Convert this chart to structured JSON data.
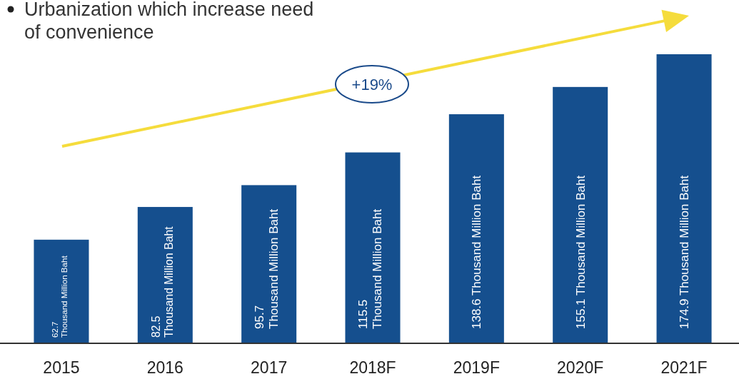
{
  "chart_data": {
    "type": "bar",
    "categories": [
      "2015",
      "2016",
      "2017",
      "2018F",
      "2019F",
      "2020F",
      "2021F"
    ],
    "values": [
      62.7,
      82.5,
      95.7,
      115.5,
      138.6,
      155.1,
      174.9
    ],
    "value_labels": [
      "62.7 Thousand Million Baht",
      "82.5 Thousand Million Baht",
      "95.7 Thousand Million Baht",
      "115.5 Thousand Million Baht",
      "138.6 Thousand Million Baht",
      "155.1 Thousand Million Baht",
      "174.9 Thousand Million Baht"
    ],
    "color": "#154f8e",
    "tick_labels": "x",
    "annotations": [
      "Urbanization which increase need of convenience",
      "+19%"
    ]
  }
}
